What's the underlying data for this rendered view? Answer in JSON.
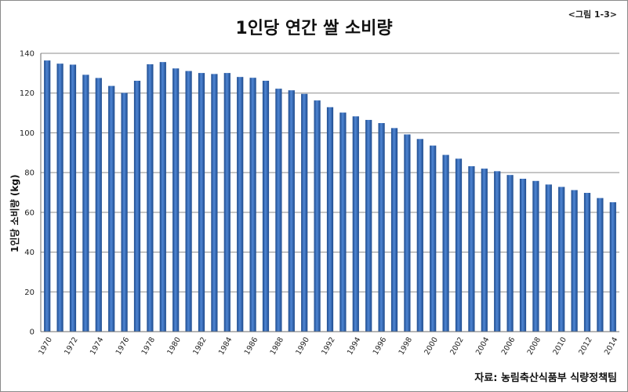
{
  "figure_label": "<그림 1-3>",
  "source": "자료: 농림축산식품부 식량정책팀",
  "chart_data": {
    "type": "bar",
    "title": "1인당 연간 쌀 소비량",
    "ylabel": "1인당 소비량 (kg)",
    "xlabel": "",
    "ylim": [
      0,
      140
    ],
    "yticks": [
      0,
      20,
      40,
      60,
      80,
      100,
      120,
      140
    ],
    "grid": true,
    "color": "#2e64b4",
    "categories": [
      "1970",
      "1971",
      "1972",
      "1973",
      "1974",
      "1975",
      "1976",
      "1977",
      "1978",
      "1979",
      "1980",
      "1981",
      "1982",
      "1983",
      "1984",
      "1985",
      "1986",
      "1987",
      "1988",
      "1989",
      "1990",
      "1991",
      "1992",
      "1993",
      "1994",
      "1995",
      "1996",
      "1997",
      "1998",
      "1999",
      "2000",
      "2001",
      "2002",
      "2003",
      "2004",
      "2005",
      "2006",
      "2007",
      "2008",
      "2009",
      "2010",
      "2011",
      "2012",
      "2013",
      "2014"
    ],
    "x_tick_labels": [
      "1970",
      "1972",
      "1974",
      "1976",
      "1978",
      "1980",
      "1982",
      "1984",
      "1986",
      "1988",
      "1990",
      "1992",
      "1994",
      "1996",
      "1998",
      "2000",
      "2002",
      "2004",
      "2006",
      "2008",
      "2010",
      "2012",
      "2014"
    ],
    "values": [
      136.4,
      134.8,
      134.3,
      129.2,
      127.6,
      123.6,
      120.1,
      126.2,
      134.5,
      135.6,
      132.4,
      131.1,
      130.1,
      129.6,
      130.1,
      128.1,
      127.7,
      126.2,
      122.2,
      121.4,
      119.6,
      116.3,
      112.9,
      110.2,
      108.3,
      106.5,
      104.9,
      102.4,
      99.2,
      96.9,
      93.6,
      88.9,
      87.0,
      83.2,
      82.0,
      80.7,
      78.8,
      76.9,
      75.8,
      74.0,
      72.8,
      71.2,
      69.8,
      67.2,
      65.1
    ]
  }
}
